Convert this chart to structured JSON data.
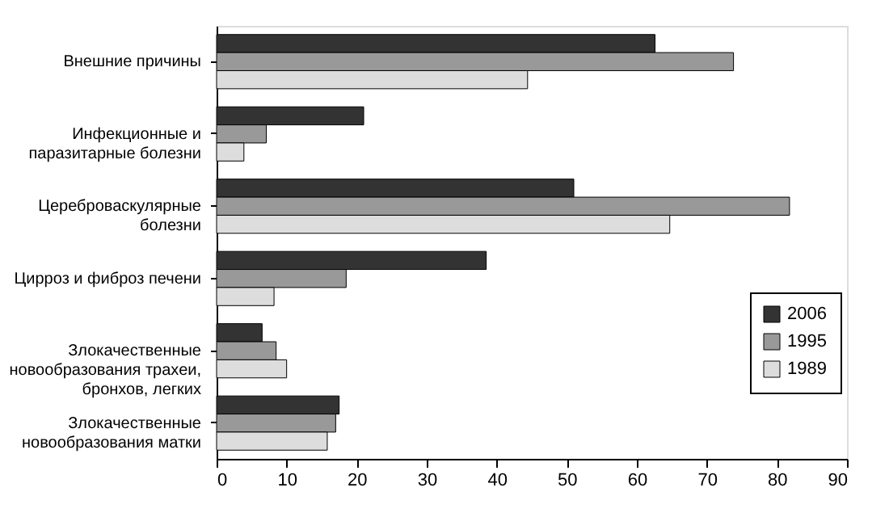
{
  "chart_data": {
    "type": "bar",
    "orientation": "horizontal",
    "categories": [
      "Внешние причины",
      "Инфекционные и\nпаразитарные болезни",
      "Цереброваскулярные\nболезни",
      "Цирроз и фиброз печени",
      "Злокачественные\nновообразования трахеи,\nбронхов, легких",
      "Злокачественные\nновообразования матки"
    ],
    "series": [
      {
        "name": "2006",
        "color": "#333333",
        "values": [
          62.6,
          21,
          51,
          38.5,
          6.5,
          17.5
        ]
      },
      {
        "name": "1995",
        "color": "#999999",
        "values": [
          73.8,
          7.1,
          81.8,
          18.5,
          8.5,
          17
        ]
      },
      {
        "name": "1989",
        "color": "#dddddd",
        "values": [
          44.4,
          3.9,
          64.7,
          8.2,
          10,
          15.8
        ]
      }
    ],
    "xlim": [
      0,
      90
    ],
    "xticks": [
      0,
      10,
      20,
      30,
      40,
      50,
      60,
      70,
      80,
      90
    ],
    "grid": false,
    "legend": "right"
  }
}
